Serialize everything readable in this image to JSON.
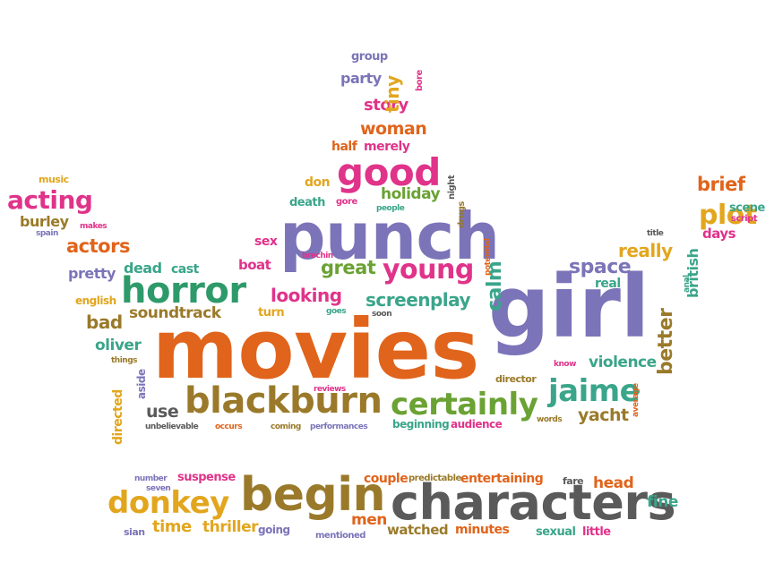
{
  "palette": {
    "orange": "#e0641b",
    "purple": "#7b74b8",
    "green": "#2e9a6a",
    "pink": "#e0338a",
    "olive": "#9a7a2a",
    "mustard": "#e2a61e",
    "gray": "#5a5a5a",
    "teal": "#3aa58a",
    "lime": "#6aa233"
  },
  "words": [
    {
      "text": "movies",
      "color": "orange"
    },
    {
      "text": "girl",
      "color": "purple"
    },
    {
      "text": "punch",
      "color": "purple"
    },
    {
      "text": "characters",
      "color": "gray"
    },
    {
      "text": "begin",
      "color": "olive"
    },
    {
      "text": "blackburn",
      "color": "olive"
    },
    {
      "text": "horror",
      "color": "green"
    },
    {
      "text": "good",
      "color": "pink"
    },
    {
      "text": "certainly",
      "color": "lime"
    },
    {
      "text": "jaime",
      "color": "teal"
    },
    {
      "text": "donkey",
      "color": "mustard"
    },
    {
      "text": "young",
      "color": "pink"
    },
    {
      "text": "acting",
      "color": "pink"
    },
    {
      "text": "plot",
      "color": "mustard"
    },
    {
      "text": "space",
      "color": "purple"
    },
    {
      "text": "better",
      "color": "olive"
    },
    {
      "text": "looking",
      "color": "pink"
    },
    {
      "text": "great",
      "color": "lime"
    },
    {
      "text": "screenplay",
      "color": "teal"
    },
    {
      "text": "calm",
      "color": "teal"
    },
    {
      "text": "soundtrack",
      "color": "olive"
    },
    {
      "text": "brief",
      "color": "orange"
    },
    {
      "text": "actors",
      "color": "orange"
    },
    {
      "text": "really",
      "color": "mustard"
    },
    {
      "text": "woman",
      "color": "orange"
    },
    {
      "text": "story",
      "color": "pink"
    },
    {
      "text": "holiday",
      "color": "lime"
    },
    {
      "text": "violence",
      "color": "teal"
    },
    {
      "text": "yacht",
      "color": "olive"
    },
    {
      "text": "oliver",
      "color": "teal"
    },
    {
      "text": "bad",
      "color": "olive"
    },
    {
      "text": "use",
      "color": "gray"
    },
    {
      "text": "time",
      "color": "mustard"
    },
    {
      "text": "thriller",
      "color": "mustard"
    },
    {
      "text": "men",
      "color": "orange"
    },
    {
      "text": "watched",
      "color": "olive"
    },
    {
      "text": "minutes",
      "color": "orange"
    },
    {
      "text": "head",
      "color": "orange"
    },
    {
      "text": "fine",
      "color": "teal"
    },
    {
      "text": "entertaining",
      "color": "orange"
    },
    {
      "text": "couple",
      "color": "orange"
    },
    {
      "text": "suspense",
      "color": "pink"
    },
    {
      "text": "sexual",
      "color": "teal"
    },
    {
      "text": "little",
      "color": "pink"
    },
    {
      "text": "going",
      "color": "purple"
    },
    {
      "text": "mentioned",
      "color": "purple"
    },
    {
      "text": "predictable",
      "color": "olive"
    },
    {
      "text": "fare",
      "color": "gray"
    },
    {
      "text": "number",
      "color": "purple"
    },
    {
      "text": "seven",
      "color": "purple"
    },
    {
      "text": "sian",
      "color": "purple"
    },
    {
      "text": "tiny",
      "color": "mustard"
    },
    {
      "text": "party",
      "color": "purple"
    },
    {
      "text": "group",
      "color": "purple"
    },
    {
      "text": "bore",
      "color": "pink"
    },
    {
      "text": "half",
      "color": "orange"
    },
    {
      "text": "merely",
      "color": "pink"
    },
    {
      "text": "don",
      "color": "mustard"
    },
    {
      "text": "death",
      "color": "teal"
    },
    {
      "text": "gore",
      "color": "pink"
    },
    {
      "text": "people",
      "color": "teal"
    },
    {
      "text": "drugs",
      "color": "olive"
    },
    {
      "text": "night",
      "color": "gray"
    },
    {
      "text": "music",
      "color": "mustard"
    },
    {
      "text": "burley",
      "color": "olive"
    },
    {
      "text": "makes",
      "color": "pink"
    },
    {
      "text": "spain",
      "color": "purple"
    },
    {
      "text": "pretty",
      "color": "purple"
    },
    {
      "text": "dead",
      "color": "teal"
    },
    {
      "text": "cast",
      "color": "teal"
    },
    {
      "text": "english",
      "color": "mustard"
    },
    {
      "text": "sex",
      "color": "pink"
    },
    {
      "text": "boat",
      "color": "pink"
    },
    {
      "text": "brechin",
      "color": "pink"
    },
    {
      "text": "potential",
      "color": "orange"
    },
    {
      "text": "turn",
      "color": "mustard"
    },
    {
      "text": "goes",
      "color": "teal"
    },
    {
      "text": "soon",
      "color": "gray"
    },
    {
      "text": "real",
      "color": "teal"
    },
    {
      "text": "british",
      "color": "teal"
    },
    {
      "text": "anal",
      "color": "teal"
    },
    {
      "text": "scene",
      "color": "teal"
    },
    {
      "text": "script",
      "color": "pink"
    },
    {
      "text": "days",
      "color": "pink"
    },
    {
      "text": "title",
      "color": "gray"
    },
    {
      "text": "things",
      "color": "olive"
    },
    {
      "text": "aside",
      "color": "purple"
    },
    {
      "text": "directed",
      "color": "mustard"
    },
    {
      "text": "unbelievable",
      "color": "gray"
    },
    {
      "text": "occurs",
      "color": "orange"
    },
    {
      "text": "coming",
      "color": "olive"
    },
    {
      "text": "performances",
      "color": "purple"
    },
    {
      "text": "reviews",
      "color": "pink"
    },
    {
      "text": "beginning",
      "color": "teal"
    },
    {
      "text": "audience",
      "color": "pink"
    },
    {
      "text": "director",
      "color": "olive"
    },
    {
      "text": "know",
      "color": "pink"
    },
    {
      "text": "words",
      "color": "olive"
    },
    {
      "text": "average",
      "color": "orange"
    }
  ]
}
